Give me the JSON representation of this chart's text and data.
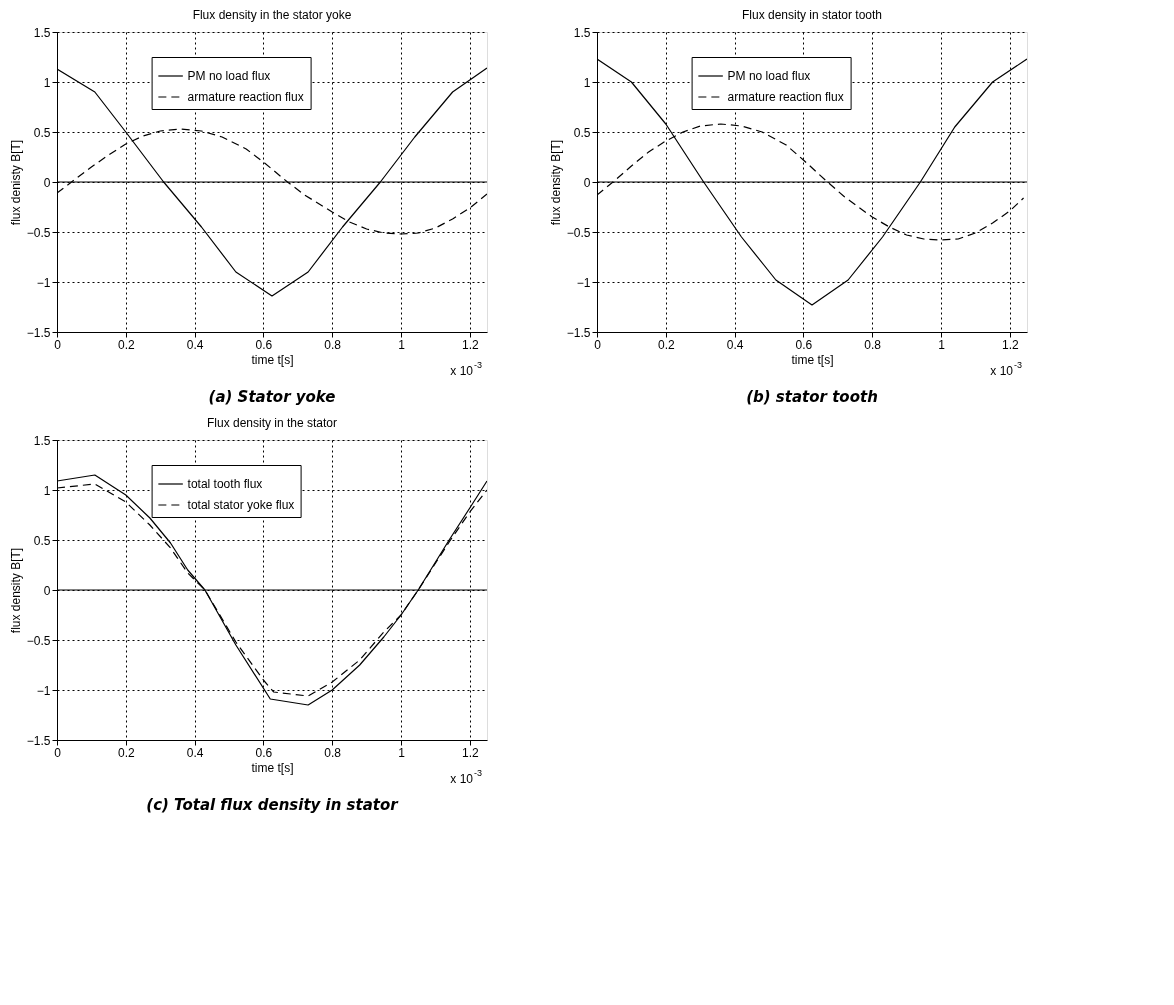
{
  "chart_data": [
    {
      "type": "line",
      "title": "Flux density in the stator yoke",
      "xlabel": "time t[s]",
      "ylabel": "flux denisty B[T]",
      "xlim": [
        0,
        1.25
      ],
      "xticks": [
        0,
        0.2,
        0.4,
        0.6,
        0.8,
        1,
        1.2
      ],
      "ylim": [
        -1.5,
        1.5
      ],
      "yticks": [
        -1.5,
        -1,
        -0.5,
        0,
        0.5,
        1,
        1.5
      ],
      "grid": true,
      "legend": "top",
      "ref_lines": [
        {
          "axis": "y",
          "value": 0,
          "color": "#000000"
        }
      ],
      "annotations": [
        "x 10$^{-3}$",
        "(a)   Stator yoke"
      ],
      "series": [
        {
          "name": "PM no load flux",
          "color": "#000000",
          "line_style": "solid",
          "x": [
            0,
            0.11,
            0.2,
            0.31,
            0.42,
            0.52,
            0.625,
            0.73,
            0.83,
            0.94,
            1.04,
            1.15,
            1.25
          ],
          "values": [
            1.13,
            0.9,
            0.5,
            0,
            -0.45,
            -0.9,
            -1.14,
            -0.9,
            -0.45,
            0,
            0.45,
            0.9,
            1.14
          ]
        },
        {
          "name": "armature reaction flux",
          "color": "#000000",
          "line_style": "dashed",
          "x": [
            0,
            0.05,
            0.1,
            0.15,
            0.2,
            0.25,
            0.3,
            0.36,
            0.42,
            0.48,
            0.55,
            0.6,
            0.67,
            0.72,
            0.8,
            0.85,
            0.9,
            0.95,
            1.0,
            1.05,
            1.1,
            1.15,
            1.2,
            1.25
          ],
          "values": [
            -0.11,
            0.02,
            0.15,
            0.27,
            0.38,
            0.46,
            0.51,
            0.53,
            0.51,
            0.45,
            0.33,
            0.2,
            0,
            -0.13,
            -0.3,
            -0.4,
            -0.47,
            -0.51,
            -0.52,
            -0.51,
            -0.46,
            -0.37,
            -0.26,
            -0.12
          ]
        }
      ]
    },
    {
      "type": "line",
      "title": "Flux density in stator tooth",
      "xlabel": "time t[s]",
      "ylabel": "flux density B[T]",
      "xlim": [
        0,
        1.25
      ],
      "xticks": [
        0,
        0.2,
        0.4,
        0.6,
        0.8,
        1,
        1.2
      ],
      "ylim": [
        -1.5,
        1.5
      ],
      "yticks": [
        -1.5,
        -1,
        -0.5,
        0,
        0.5,
        1,
        1.5
      ],
      "grid": true,
      "legend": "top",
      "ref_lines": [
        {
          "axis": "y",
          "value": 0,
          "color": "#000000"
        }
      ],
      "annotations": [
        "x 10$^{-3}$",
        "(b) stator tooth"
      ],
      "series": [
        {
          "name": "PM no load flux",
          "color": "#000000",
          "line_style": "solid",
          "x": [
            0,
            0.1,
            0.2,
            0.31,
            0.42,
            0.52,
            0.625,
            0.73,
            0.83,
            0.94,
            1.04,
            1.15,
            1.25
          ],
          "values": [
            1.23,
            1.0,
            0.58,
            0,
            -0.55,
            -0.98,
            -1.23,
            -0.98,
            -0.55,
            0,
            0.55,
            1.0,
            1.23
          ]
        },
        {
          "name": "armature reaction flux",
          "color": "#000000",
          "line_style": "dashed",
          "x": [
            0,
            0.05,
            0.1,
            0.15,
            0.2,
            0.25,
            0.3,
            0.36,
            0.42,
            0.48,
            0.55,
            0.6,
            0.67,
            0.72,
            0.8,
            0.85,
            0.9,
            0.95,
            1.0,
            1.05,
            1.1,
            1.15,
            1.2,
            1.24
          ],
          "values": [
            -0.13,
            0.01,
            0.16,
            0.3,
            0.41,
            0.5,
            0.56,
            0.58,
            0.56,
            0.5,
            0.37,
            0.22,
            0,
            -0.15,
            -0.35,
            -0.45,
            -0.53,
            -0.57,
            -0.58,
            -0.57,
            -0.51,
            -0.41,
            -0.29,
            -0.16
          ]
        }
      ]
    },
    {
      "type": "line",
      "title": "Flux density in the stator",
      "xlabel": "time t[s]",
      "ylabel": "flux density B[T]",
      "xlim": [
        0,
        1.25
      ],
      "xticks": [
        0,
        0.2,
        0.4,
        0.6,
        0.8,
        1,
        1.2
      ],
      "ylim": [
        -1.5,
        1.5
      ],
      "yticks": [
        -1.5,
        -1,
        -0.5,
        0,
        0.5,
        1,
        1.5
      ],
      "grid": true,
      "legend": "top",
      "ref_lines": [
        {
          "axis": "y",
          "value": 0,
          "color": "#000000"
        }
      ],
      "annotations": [
        "x 10$^{-3}$",
        "(c) Total flux density in stator"
      ],
      "series": [
        {
          "name": "total tooth flux",
          "color": "#000000",
          "line_style": "solid",
          "x": [
            0,
            0.11,
            0.2,
            0.27,
            0.33,
            0.38,
            0.43,
            0.52,
            0.62,
            0.73,
            0.8,
            0.88,
            0.95,
            1.0,
            1.05,
            1.14,
            1.2,
            1.25
          ],
          "values": [
            1.09,
            1.15,
            0.95,
            0.72,
            0.47,
            0.2,
            0,
            -0.55,
            -1.09,
            -1.15,
            -1.0,
            -0.75,
            -0.47,
            -0.25,
            0,
            0.5,
            0.82,
            1.09
          ]
        },
        {
          "name": "total stator yoke flux",
          "color": "#000000",
          "line_style": "dashed",
          "x": [
            0,
            0.11,
            0.2,
            0.27,
            0.33,
            0.38,
            0.43,
            0.52,
            0.6,
            0.63,
            0.73,
            0.8,
            0.88,
            0.95,
            1.0,
            1.05,
            1.14,
            1.2,
            1.25
          ],
          "values": [
            1.02,
            1.06,
            0.88,
            0.65,
            0.42,
            0.17,
            0,
            -0.52,
            -0.9,
            -1.02,
            -1.06,
            -0.92,
            -0.7,
            -0.42,
            -0.25,
            0,
            0.48,
            0.78,
            1.0
          ]
        }
      ]
    }
  ]
}
